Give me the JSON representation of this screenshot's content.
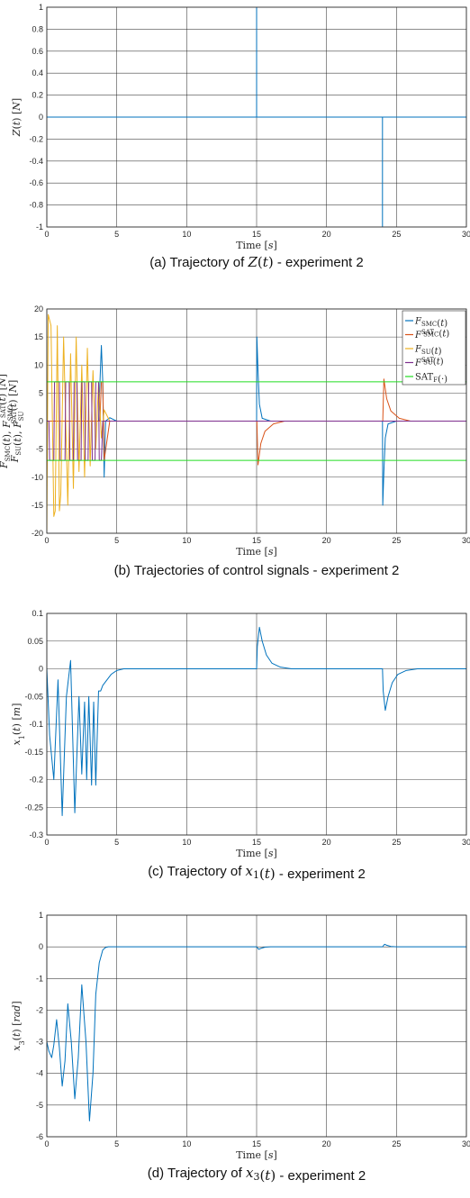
{
  "chart_data": [
    {
      "type": "line",
      "xlabel": "Time [s]",
      "ylabel": "Z(t) [N]",
      "xlim": [
        0,
        30
      ],
      "ylim": [
        -1,
        1
      ],
      "xticks": [
        0,
        5,
        10,
        15,
        20,
        25,
        30
      ],
      "xtick_labels": [
        "0",
        "5",
        "10",
        "15",
        "20",
        "25",
        "30"
      ],
      "yticks": [
        -1,
        -0.8,
        -0.6,
        -0.4,
        -0.2,
        0,
        0.2,
        0.4,
        0.6,
        0.8,
        1
      ],
      "ytick_labels": [
        "-1",
        "-0.8",
        "-0.6",
        "-0.4",
        "-0.2",
        "0",
        "0.2",
        "0.4",
        "0.6",
        "0.8",
        "1"
      ],
      "grid": true,
      "caption": "(a) Trajectory of Z(t) - experiment 2",
      "series": [
        {
          "color": "#0072BD",
          "x": [
            0,
            15,
            15,
            15,
            15,
            24,
            24,
            24,
            24,
            30
          ],
          "y": [
            0,
            0,
            1,
            1,
            0,
            0,
            -1,
            -1,
            0,
            0
          ]
        }
      ]
    },
    {
      "type": "line",
      "xlabel": "Time [s]",
      "ylabel": "F_SMC(t), F_SMC^SAT(t) [N] ; F_SU(t), F_SU^SAT(t) [N]",
      "xlim": [
        0,
        30
      ],
      "ylim": [
        -20,
        20
      ],
      "xticks": [
        0,
        5,
        10,
        15,
        20,
        25,
        30
      ],
      "xtick_labels": [
        "0",
        "5",
        "10",
        "15",
        "20",
        "25",
        "30"
      ],
      "yticks": [
        -20,
        -15,
        -10,
        -5,
        0,
        5,
        10,
        15,
        20
      ],
      "ytick_labels": [
        "-20",
        "-15",
        "-10",
        "-5",
        "0",
        "5",
        "10",
        "15",
        "20"
      ],
      "grid": true,
      "legend_position": "top-right",
      "caption": "(b) Trajectories of control signals - experiment 2",
      "series": [
        {
          "name": "F_SMC(t)",
          "color": "#0072BD",
          "x": [
            0,
            3.7,
            3.8,
            3.9,
            4.0,
            4.1,
            4.2,
            4.5,
            5.0,
            15,
            15.02,
            15.1,
            15.2,
            15.4,
            16,
            24,
            24.02,
            24.1,
            24.2,
            24.4,
            25,
            30
          ],
          "y": [
            0,
            0,
            7,
            13.5,
            7,
            -10,
            0,
            0.6,
            0,
            0,
            15,
            9,
            3,
            0.5,
            0,
            0,
            -15,
            -9,
            -3,
            -0.5,
            0,
            0
          ]
        },
        {
          "name": "F_SMC^SAT(t)",
          "color": "#D95319",
          "x": [
            0,
            3.8,
            3.9,
            4.0,
            4.1,
            4.5,
            15,
            15.02,
            15.1,
            15.3,
            15.6,
            16.2,
            17,
            24,
            24.02,
            24.1,
            24.3,
            24.6,
            25.2,
            26,
            30
          ],
          "y": [
            0,
            0,
            7,
            7,
            -7,
            0,
            0,
            0,
            -7.8,
            -4,
            -1.8,
            -0.5,
            0,
            0,
            0,
            7.5,
            4,
            1.8,
            0.5,
            0,
            0
          ]
        },
        {
          "name": "F_SU(t)",
          "color": "#EDB120",
          "x": [
            0,
            0.1,
            0.3,
            0.5,
            0.6,
            0.75,
            0.9,
            1.0,
            1.2,
            1.5,
            1.7,
            1.9,
            2.1,
            2.3,
            2.5,
            2.7,
            2.9,
            3.1,
            3.3,
            3.5,
            3.7,
            3.9,
            4.1,
            4.5
          ],
          "y": [
            -19.5,
            19,
            17,
            -17,
            -16,
            17,
            -16,
            -13,
            15,
            -15,
            12,
            -12,
            15,
            -9,
            10,
            -10,
            13,
            -8,
            9,
            -5,
            7,
            -3,
            2,
            0
          ]
        },
        {
          "name": "F_SU^SAT(t)",
          "color": "#7E2F8E",
          "x": [
            0,
            0.15,
            0.2,
            0.5,
            0.55,
            0.9,
            0.95,
            1.3,
            1.35,
            1.6,
            1.65,
            1.9,
            1.95,
            2.15,
            2.2,
            2.45,
            2.5,
            2.7,
            2.75,
            2.95,
            3.0,
            3.2,
            3.25,
            3.45,
            3.5,
            3.7,
            3.75,
            3.9,
            4.0,
            30
          ],
          "y": [
            0,
            0,
            -7,
            -7,
            7,
            7,
            -7,
            -7,
            7,
            7,
            -7,
            -7,
            7,
            7,
            -7,
            -7,
            7,
            7,
            -7,
            -7,
            7,
            7,
            -7,
            -7,
            7,
            7,
            -7,
            -7,
            0,
            0
          ]
        },
        {
          "name": "SAT_F(·)",
          "color": "#22DD22",
          "x": [
            0,
            30
          ],
          "y": [
            7,
            7
          ]
        },
        {
          "color": "#22DD22",
          "x": [
            0,
            30
          ],
          "y": [
            -7,
            -7
          ]
        }
      ]
    },
    {
      "type": "line",
      "xlabel": "Time [s]",
      "ylabel": "x1(t) [m]",
      "xlim": [
        0,
        30
      ],
      "ylim": [
        -0.3,
        0.1
      ],
      "xticks": [
        0,
        5,
        10,
        15,
        20,
        25,
        30
      ],
      "xtick_labels": [
        "0",
        "5",
        "10",
        "15",
        "20",
        "25",
        "30"
      ],
      "yticks": [
        -0.3,
        -0.25,
        -0.2,
        -0.15,
        -0.1,
        -0.05,
        0,
        0.05,
        0.1
      ],
      "ytick_labels": [
        "-0.3",
        "-0.25",
        "-0.2",
        "-0.15",
        "-0.1",
        "-0.05",
        "0",
        "0.05",
        "0.1"
      ],
      "grid": true,
      "caption": "(c) Trajectory of x1(t) - experiment 2",
      "series": [
        {
          "color": "#0072BD",
          "x": [
            0,
            0.2,
            0.5,
            0.8,
            1.1,
            1.4,
            1.7,
            2.0,
            2.3,
            2.5,
            2.7,
            2.85,
            3.0,
            3.2,
            3.35,
            3.5,
            3.7,
            3.85,
            4.0,
            4.3,
            4.6,
            5.0,
            5.5,
            6.0,
            15,
            15.05,
            15.2,
            15.4,
            15.7,
            16.1,
            16.7,
            17.5,
            24,
            24.05,
            24.2,
            24.4,
            24.7,
            25.1,
            25.7,
            26.5,
            30
          ],
          "y": [
            0,
            -0.12,
            -0.2,
            -0.02,
            -0.265,
            -0.05,
            0.015,
            -0.26,
            -0.05,
            -0.19,
            -0.06,
            -0.2,
            -0.05,
            -0.21,
            -0.06,
            -0.21,
            -0.04,
            -0.04,
            -0.03,
            -0.02,
            -0.01,
            -0.003,
            0,
            0,
            0,
            0.04,
            0.075,
            0.05,
            0.025,
            0.01,
            0.003,
            0,
            0,
            -0.04,
            -0.075,
            -0.05,
            -0.025,
            -0.01,
            -0.003,
            0,
            0
          ]
        }
      ]
    },
    {
      "type": "line",
      "xlabel": "Time [s]",
      "ylabel": "x3(t) [rad]",
      "xlim": [
        0,
        30
      ],
      "ylim": [
        -6,
        1
      ],
      "xticks": [
        0,
        5,
        10,
        15,
        20,
        25,
        30
      ],
      "xtick_labels": [
        "0",
        "5",
        "10",
        "15",
        "20",
        "25",
        "30"
      ],
      "yticks": [
        -6,
        -5,
        -4,
        -3,
        -2,
        -1,
        0,
        1
      ],
      "ytick_labels": [
        "-6",
        "-5",
        "-4",
        "-3",
        "-2",
        "-1",
        "0",
        "1"
      ],
      "grid": true,
      "caption": "(d) Trajectory of x3(t) - experiment 2",
      "series": [
        {
          "color": "#0072BD",
          "x": [
            0,
            0.15,
            0.35,
            0.5,
            0.7,
            0.9,
            1.1,
            1.3,
            1.5,
            1.75,
            2.0,
            2.25,
            2.5,
            2.8,
            3.05,
            3.3,
            3.5,
            3.75,
            4.0,
            4.2,
            4.4,
            4.6,
            5.0,
            15,
            15.15,
            15.3,
            15.6,
            16.0,
            24,
            24.15,
            24.3,
            24.6,
            25.0,
            30
          ],
          "y": [
            -3.0,
            -3.3,
            -3.5,
            -3.1,
            -2.3,
            -3.2,
            -4.4,
            -3.6,
            -1.8,
            -3.0,
            -4.8,
            -3.5,
            -1.2,
            -3.0,
            -5.5,
            -4.0,
            -1.5,
            -0.5,
            -0.1,
            -0.02,
            0,
            0,
            0,
            0,
            -0.08,
            -0.05,
            -0.01,
            0,
            0,
            0.08,
            0.05,
            0.01,
            0,
            0
          ]
        }
      ]
    }
  ],
  "legend": {
    "entries": [
      "F_SMC(t)",
      "F_SMC^SAT(t)",
      "F_SU(t)",
      "F_SU^SAT(t)",
      "SAT_F(·)"
    ]
  }
}
